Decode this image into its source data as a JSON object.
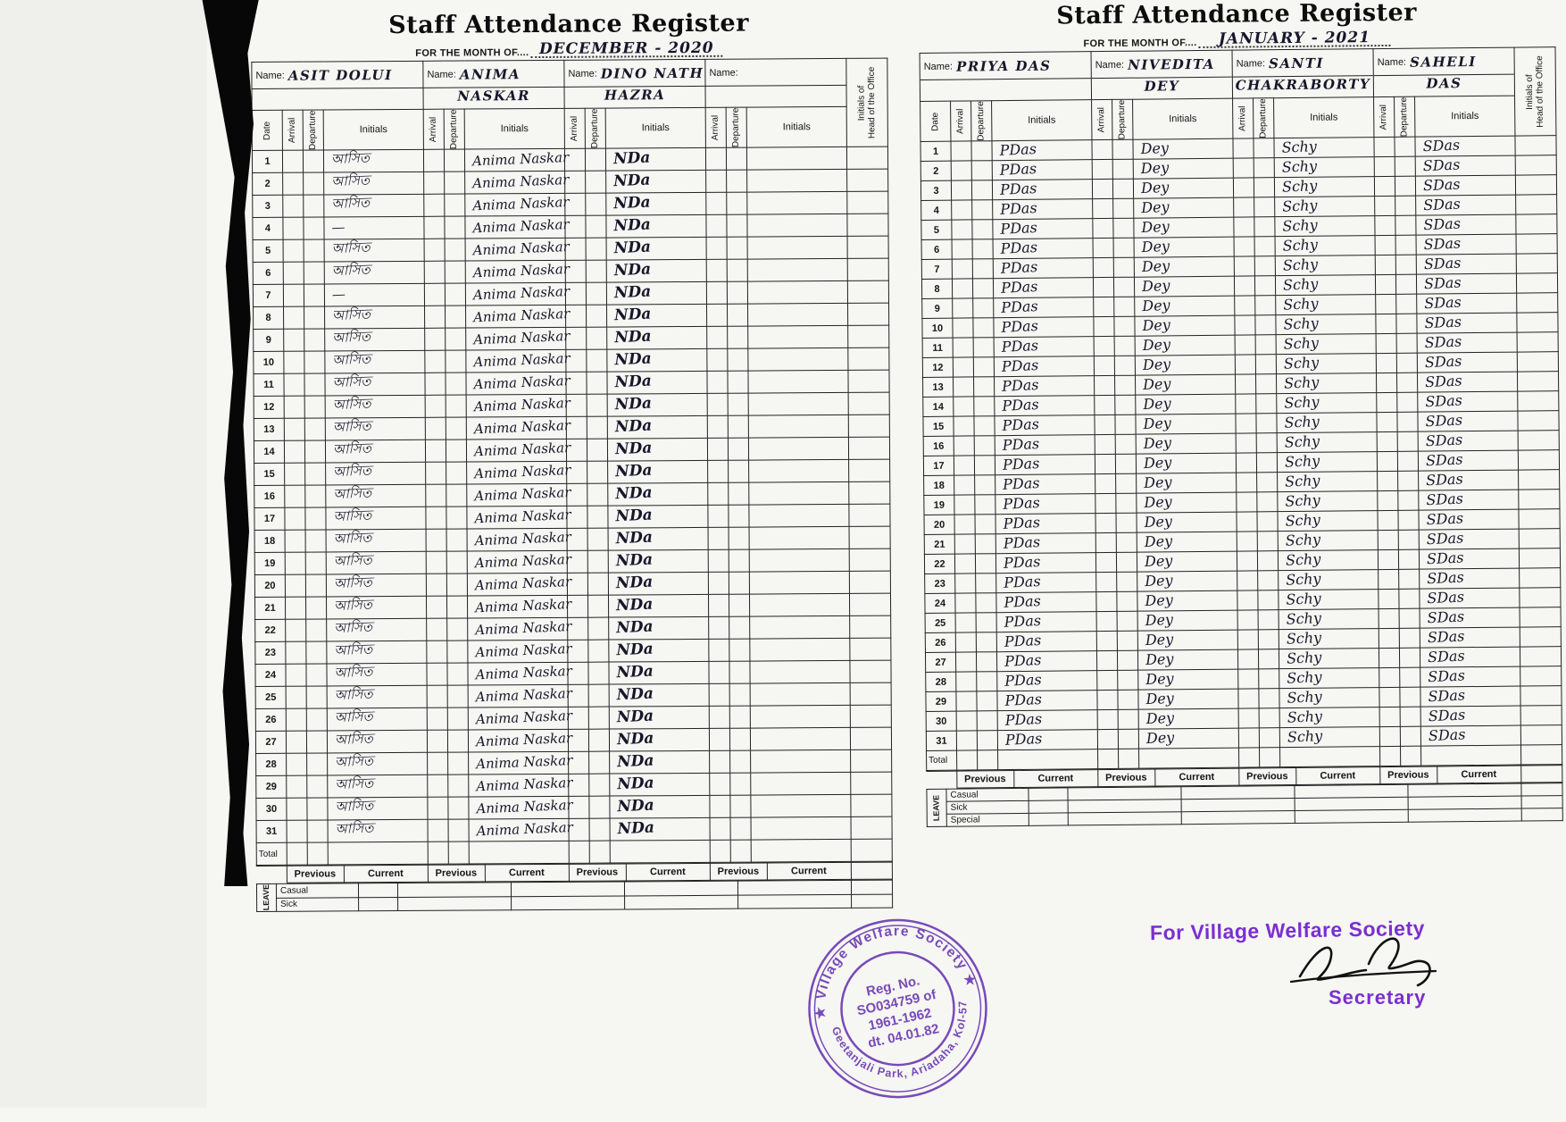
{
  "pages": [
    {
      "title": "Staff Attendance Register",
      "month_label": "FOR THE MONTH OF....",
      "month_value": "DECEMBER - 2020",
      "name_label": "Name:",
      "column_headers": {
        "date": "Date",
        "arrival": "Arrival",
        "departure": "Departure",
        "initials": "Initials",
        "head_initials": "Initials of\nHead of the Office"
      },
      "staff": [
        {
          "name_line1": "ASIT DOLUI",
          "name_line2": "",
          "signature": "আসিত"
        },
        {
          "name_line1": "ANIMA",
          "name_line2": "NASKAR",
          "signature": "Anima Naskar"
        },
        {
          "name_line1": "DINO NATH",
          "name_line2": "HAZRA",
          "signature": "NDa"
        },
        {
          "name_line1": "",
          "name_line2": "",
          "signature": ""
        }
      ],
      "rows": [
        {
          "date": "1",
          "sigs": [
            "আসিত",
            "Anima Naskar",
            "NDa",
            ""
          ]
        },
        {
          "date": "2",
          "sigs": [
            "আসিত",
            "Anima Naskar",
            "NDa",
            ""
          ]
        },
        {
          "date": "3",
          "sigs": [
            "আসিত",
            "Anima Naskar",
            "NDa",
            ""
          ]
        },
        {
          "date": "4",
          "sigs": [
            "—",
            "Anima Naskar",
            "NDa",
            ""
          ]
        },
        {
          "date": "5",
          "sigs": [
            "আসিত",
            "Anima Naskar",
            "NDa",
            ""
          ]
        },
        {
          "date": "6",
          "sigs": [
            "আসিত",
            "Anima Naskar",
            "NDa",
            ""
          ]
        },
        {
          "date": "7",
          "sigs": [
            "—",
            "Anima Naskar",
            "NDa",
            ""
          ]
        },
        {
          "date": "8",
          "sigs": [
            "আসিত",
            "Anima Naskar",
            "NDa",
            ""
          ]
        },
        {
          "date": "9",
          "sigs": [
            "আসিত",
            "Anima Naskar",
            "NDa",
            ""
          ]
        },
        {
          "date": "10",
          "sigs": [
            "আসিত",
            "Anima Naskar",
            "NDa",
            ""
          ]
        },
        {
          "date": "11",
          "sigs": [
            "আসিত",
            "Anima Naskar",
            "NDa",
            ""
          ]
        },
        {
          "date": "12",
          "sigs": [
            "আসিত",
            "Anima Naskar",
            "NDa",
            ""
          ]
        },
        {
          "date": "13",
          "sigs": [
            "আসিত",
            "Anima Naskar",
            "NDa",
            ""
          ]
        },
        {
          "date": "14",
          "sigs": [
            "আসিত",
            "Anima Naskar",
            "NDa",
            ""
          ]
        },
        {
          "date": "15",
          "sigs": [
            "আসিত",
            "Anima Naskar",
            "NDa",
            ""
          ]
        },
        {
          "date": "16",
          "sigs": [
            "আসিত",
            "Anima Naskar",
            "NDa",
            ""
          ]
        },
        {
          "date": "17",
          "sigs": [
            "আসিত",
            "Anima Naskar",
            "NDa",
            ""
          ]
        },
        {
          "date": "18",
          "sigs": [
            "আসিত",
            "Anima Naskar",
            "NDa",
            ""
          ]
        },
        {
          "date": "19",
          "sigs": [
            "আসিত",
            "Anima Naskar",
            "NDa",
            ""
          ]
        },
        {
          "date": "20",
          "sigs": [
            "আসিত",
            "Anima Naskar",
            "NDa",
            ""
          ]
        },
        {
          "date": "21",
          "sigs": [
            "আসিত",
            "Anima Naskar",
            "NDa",
            ""
          ]
        },
        {
          "date": "22",
          "sigs": [
            "আসিত",
            "Anima Naskar",
            "NDa",
            ""
          ]
        },
        {
          "date": "23",
          "sigs": [
            "আসিত",
            "Anima Naskar",
            "NDa",
            ""
          ]
        },
        {
          "date": "24",
          "sigs": [
            "আসিত",
            "Anima Naskar",
            "NDa",
            ""
          ]
        },
        {
          "date": "25",
          "sigs": [
            "আসিত",
            "Anima Naskar",
            "NDa",
            ""
          ]
        },
        {
          "date": "26",
          "sigs": [
            "আসিত",
            "Anima Naskar",
            "NDa",
            ""
          ]
        },
        {
          "date": "27",
          "sigs": [
            "আসিত",
            "Anima Naskar",
            "NDa",
            ""
          ]
        },
        {
          "date": "28",
          "sigs": [
            "আসিত",
            "Anima Naskar",
            "NDa",
            ""
          ]
        },
        {
          "date": "29",
          "sigs": [
            "আসিত",
            "Anima Naskar",
            "NDa",
            ""
          ]
        },
        {
          "date": "30",
          "sigs": [
            "আসিত",
            "Anima Naskar",
            "NDa",
            ""
          ]
        },
        {
          "date": "31",
          "sigs": [
            "আসিত",
            "Anima Naskar",
            "NDa",
            ""
          ]
        }
      ],
      "total_label": "Total",
      "summary_headers": {
        "previous": "Previous",
        "current": "Current"
      },
      "leave_label": "LEAVE",
      "leave_types": [
        "Casual",
        "Sick"
      ]
    },
    {
      "title": "Staff Attendance Register",
      "month_label": "FOR THE MONTH OF....",
      "month_value": "JANUARY - 2021",
      "name_label": "Name:",
      "column_headers": {
        "date": "Date",
        "arrival": "Arrival",
        "departure": "Departure",
        "initials": "Initials",
        "head_initials": "Initials of\nHead of the Office"
      },
      "staff": [
        {
          "name_line1": "PRIYA DAS",
          "name_line2": "",
          "signature": "PDas"
        },
        {
          "name_line1": "NIVEDITA",
          "name_line2": "DEY",
          "signature": "Dey"
        },
        {
          "name_line1": "SANTI",
          "name_line2": "CHAKRABORTY",
          "signature": "Schy"
        },
        {
          "name_line1": "SAHELI",
          "name_line2": "DAS",
          "signature": "SDas"
        }
      ],
      "rows": [
        {
          "date": "1",
          "sigs": [
            "PDas",
            "Dey",
            "Schy",
            "SDas"
          ]
        },
        {
          "date": "2",
          "sigs": [
            "PDas",
            "Dey",
            "Schy",
            "SDas"
          ]
        },
        {
          "date": "3",
          "sigs": [
            "PDas",
            "Dey",
            "Schy",
            "SDas"
          ]
        },
        {
          "date": "4",
          "sigs": [
            "PDas",
            "Dey",
            "Schy",
            "SDas"
          ]
        },
        {
          "date": "5",
          "sigs": [
            "PDas",
            "Dey",
            "Schy",
            "SDas"
          ]
        },
        {
          "date": "6",
          "sigs": [
            "PDas",
            "Dey",
            "Schy",
            "SDas"
          ]
        },
        {
          "date": "7",
          "sigs": [
            "PDas",
            "Dey",
            "Schy",
            "SDas"
          ]
        },
        {
          "date": "8",
          "sigs": [
            "PDas",
            "Dey",
            "Schy",
            "SDas"
          ]
        },
        {
          "date": "9",
          "sigs": [
            "PDas",
            "Dey",
            "Schy",
            "SDas"
          ]
        },
        {
          "date": "10",
          "sigs": [
            "PDas",
            "Dey",
            "Schy",
            "SDas"
          ]
        },
        {
          "date": "11",
          "sigs": [
            "PDas",
            "Dey",
            "Schy",
            "SDas"
          ]
        },
        {
          "date": "12",
          "sigs": [
            "PDas",
            "Dey",
            "Schy",
            "SDas"
          ]
        },
        {
          "date": "13",
          "sigs": [
            "PDas",
            "Dey",
            "Schy",
            "SDas"
          ]
        },
        {
          "date": "14",
          "sigs": [
            "PDas",
            "Dey",
            "Schy",
            "SDas"
          ]
        },
        {
          "date": "15",
          "sigs": [
            "PDas",
            "Dey",
            "Schy",
            "SDas"
          ]
        },
        {
          "date": "16",
          "sigs": [
            "PDas",
            "Dey",
            "Schy",
            "SDas"
          ]
        },
        {
          "date": "17",
          "sigs": [
            "PDas",
            "Dey",
            "Schy",
            "SDas"
          ]
        },
        {
          "date": "18",
          "sigs": [
            "PDas",
            "Dey",
            "Schy",
            "SDas"
          ]
        },
        {
          "date": "19",
          "sigs": [
            "PDas",
            "Dey",
            "Schy",
            "SDas"
          ]
        },
        {
          "date": "20",
          "sigs": [
            "PDas",
            "Dey",
            "Schy",
            "SDas"
          ]
        },
        {
          "date": "21",
          "sigs": [
            "PDas",
            "Dey",
            "Schy",
            "SDas"
          ]
        },
        {
          "date": "22",
          "sigs": [
            "PDas",
            "Dey",
            "Schy",
            "SDas"
          ]
        },
        {
          "date": "23",
          "sigs": [
            "PDas",
            "Dey",
            "Schy",
            "SDas"
          ]
        },
        {
          "date": "24",
          "sigs": [
            "PDas",
            "Dey",
            "Schy",
            "SDas"
          ]
        },
        {
          "date": "25",
          "sigs": [
            "PDas",
            "Dey",
            "Schy",
            "SDas"
          ]
        },
        {
          "date": "26",
          "sigs": [
            "PDas",
            "Dey",
            "Schy",
            "SDas"
          ]
        },
        {
          "date": "27",
          "sigs": [
            "PDas",
            "Dey",
            "Schy",
            "SDas"
          ]
        },
        {
          "date": "28",
          "sigs": [
            "PDas",
            "Dey",
            "Schy",
            "SDas"
          ]
        },
        {
          "date": "29",
          "sigs": [
            "PDas",
            "Dey",
            "Schy",
            "SDas"
          ]
        },
        {
          "date": "30",
          "sigs": [
            "PDas",
            "Dey",
            "Schy",
            "SDas"
          ]
        },
        {
          "date": "31",
          "sigs": [
            "PDas",
            "Dey",
            "Schy",
            "SDas"
          ]
        }
      ],
      "total_label": "Total",
      "summary_headers": {
        "previous": "Previous",
        "current": "Current"
      },
      "leave_label": "LEAVE",
      "leave_types": [
        "Casual",
        "Sick",
        "Special"
      ]
    }
  ],
  "stamp": {
    "org_top": "★ Village Welfare Society ★",
    "org_bottom": "Geetanjali Park, Ariadaha, Kol-57",
    "reg_line1": "Reg. No.",
    "reg_line2": "SO034759 of",
    "reg_line3": "1961-1962",
    "reg_line4": "dt. 04.01.82",
    "ink_color": "#6633b2"
  },
  "approval": {
    "for_text": "For Village Welfare Society",
    "role": "Secretary",
    "ink_color": "#7a2fd0"
  }
}
